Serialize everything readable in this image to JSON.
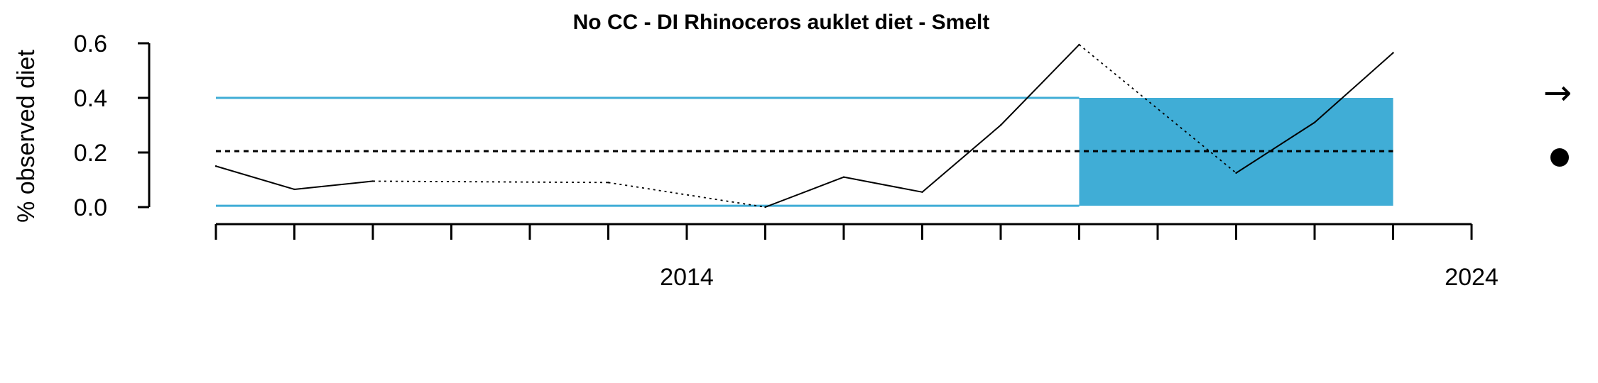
{
  "chart_data": {
    "type": "line",
    "title": "No CC - DI Rhinoceros auklet diet - Smelt",
    "xlabel": "",
    "ylabel": "% observed diet",
    "xlim": [
      2008,
      2024
    ],
    "ylim": [
      0,
      0.6
    ],
    "yticks": [
      "0.0",
      "0.2",
      "0.4",
      "0.6"
    ],
    "xtick_labels": [
      {
        "x": 2014,
        "label": "2014"
      },
      {
        "x": 2024,
        "label": "2024"
      }
    ],
    "x_minor_ticks": [
      2008,
      2009,
      2010,
      2011,
      2012,
      2013,
      2014,
      2015,
      2016,
      2017,
      2018,
      2019,
      2020,
      2021,
      2022,
      2023,
      2024
    ],
    "series": [
      {
        "style": "solid-with-dotted-gaps",
        "color": "#000000",
        "x": [
          2008,
          2009,
          2010,
          2013,
          2015,
          2016,
          2017,
          2018,
          2019,
          2021,
          2022,
          2023
        ],
        "values": [
          0.15,
          0.065,
          0.095,
          0.09,
          0.0,
          0.11,
          0.055,
          0.3,
          0.595,
          0.125,
          0.31,
          0.565
        ],
        "segments_dotted": [
          [
            2010,
            2013
          ],
          [
            2013,
            2015
          ],
          [
            2019,
            2021
          ]
        ]
      }
    ],
    "reference_lines": {
      "mean": 0.205,
      "upper": 0.4,
      "lower": 0.005,
      "mean_style": "dashed",
      "band_color": "#40add6"
    },
    "shaded_region": {
      "x_start": 2019,
      "x_end": 2023,
      "y_start": 0.005,
      "y_end": 0.4,
      "color": "#40add6"
    },
    "grid": false
  },
  "side_indicators": {
    "trend_symbol": "→",
    "status_symbol": "●"
  }
}
